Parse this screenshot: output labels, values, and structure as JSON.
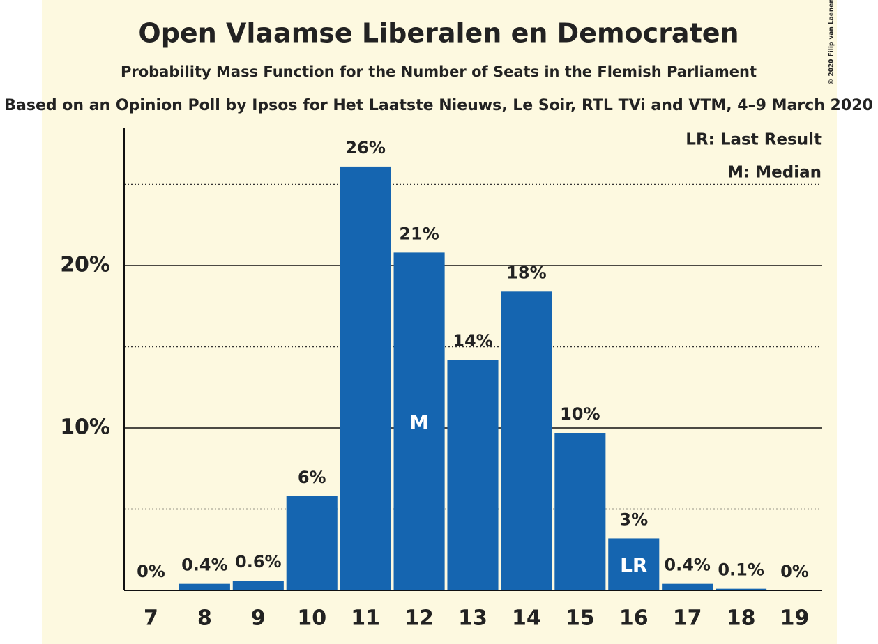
{
  "chart_data": {
    "type": "bar",
    "title": "Open Vlaamse Liberalen en Democraten",
    "subtitle": "Probability Mass Function for the Number of Seats in the Flemish Parliament",
    "caption": "Based on an Opinion Poll by Ipsos for Het Laatste Nieuws, Le Soir, RTL TVi and VTM, 4–9 March 2020",
    "copyright": "© 2020 Filip van Laenen",
    "categories": [
      "7",
      "8",
      "9",
      "10",
      "11",
      "12",
      "13",
      "14",
      "15",
      "16",
      "17",
      "18",
      "19"
    ],
    "values": [
      0,
      0.4,
      0.6,
      5.8,
      26.1,
      20.8,
      14.2,
      18.4,
      9.7,
      3.2,
      0.4,
      0.1,
      0
    ],
    "value_labels": [
      "0%",
      "0.4%",
      "0.6%",
      "6%",
      "26%",
      "21%",
      "14%",
      "18%",
      "10%",
      "3%",
      "0.4%",
      "0.1%",
      "0%"
    ],
    "color": "#1565b0",
    "ylim": [
      0,
      28.5
    ],
    "yticks": [
      {
        "value": 10,
        "label": "10%"
      },
      {
        "value": 20,
        "label": "20%"
      }
    ],
    "minor_yticks": [
      5,
      15,
      25
    ],
    "grid": true,
    "markers": [
      {
        "category": "12",
        "label": "M"
      },
      {
        "category": "16",
        "label": "LR"
      }
    ],
    "legend": [
      "LR: Last Result",
      "M: Median"
    ],
    "legend_position": "upper right"
  }
}
